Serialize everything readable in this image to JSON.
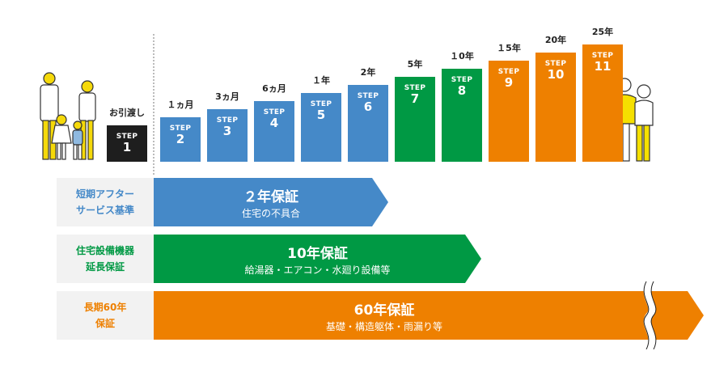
{
  "steps": [
    {
      "step": "STEP",
      "num": "1",
      "period": "お引渡し",
      "color": "#1e1e1e"
    },
    {
      "step": "STEP",
      "num": "2",
      "period": "１ヵ月",
      "color": "#4589c8"
    },
    {
      "step": "STEP",
      "num": "3",
      "period": "3ヵ月",
      "color": "#4589c8"
    },
    {
      "step": "STEP",
      "num": "4",
      "period": "6ヵ月",
      "color": "#4589c8"
    },
    {
      "step": "STEP",
      "num": "5",
      "period": "１年",
      "color": "#4589c8"
    },
    {
      "step": "STEP",
      "num": "6",
      "period": "2年",
      "color": "#4589c8"
    },
    {
      "step": "STEP",
      "num": "7",
      "period": "5年",
      "color": "#009944"
    },
    {
      "step": "STEP",
      "num": "8",
      "period": "１0年",
      "color": "#009944"
    },
    {
      "step": "STEP",
      "num": "9",
      "period": "１5年",
      "color": "#ee8000"
    },
    {
      "step": "STEP",
      "num": "10",
      "period": "20年",
      "color": "#ee8000"
    },
    {
      "step": "STEP",
      "num": "11",
      "period": "25年",
      "color": "#ee8000"
    }
  ],
  "warranties": [
    {
      "label_line1": "短期アフター",
      "label_line2": "サービス基準",
      "title": "２年保証",
      "desc": "住宅の不具合",
      "color": "#4589c8"
    },
    {
      "label_line1": "住宅設備機器",
      "label_line2": "延長保証",
      "title": "10年保証",
      "desc": "給湯器・エアコン・水廻り設備等",
      "color": "#009944"
    },
    {
      "label_line1": "長期60年",
      "label_line2": "保証",
      "title": "60年保証",
      "desc": "基礎・構造躯体・雨漏り等",
      "color": "#ee8000"
    }
  ],
  "icons": {
    "family": "family-illustration",
    "elderly": "elderly-couple-illustration",
    "break": "wavy-break-icon"
  }
}
